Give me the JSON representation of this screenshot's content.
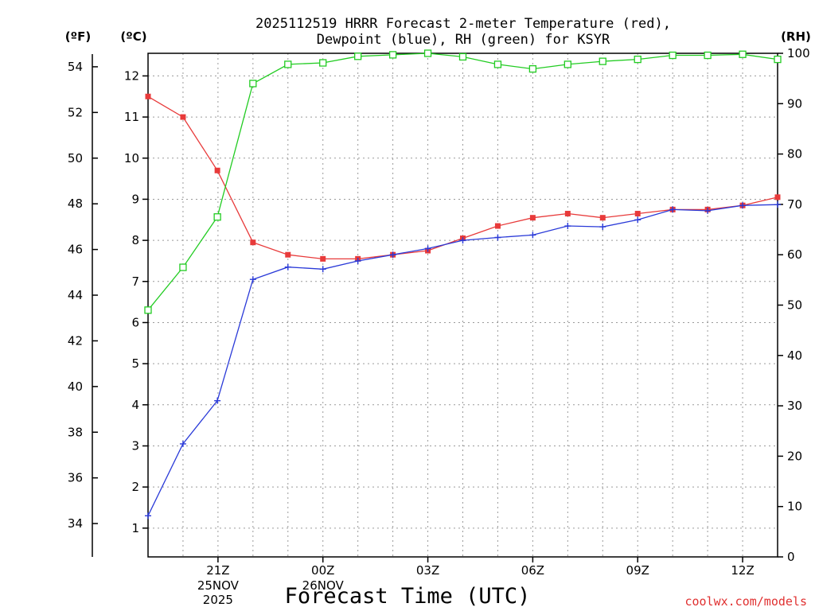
{
  "chart_data": {
    "type": "line",
    "title_line1": "2025112519 HRRR Forecast 2-meter Temperature (red),",
    "title_line2": "Dewpoint (blue), RH (green) for KSYR",
    "xlabel": "Forecast Time (UTC)",
    "unit_left_f": "(ºF)",
    "unit_left_c": "(ºC)",
    "unit_right": "(RH)",
    "credit": "coolwx.com/models",
    "x_hours": [
      -1,
      0,
      1,
      2,
      3,
      4,
      5,
      6,
      7,
      8,
      9,
      10,
      11,
      12,
      13,
      14,
      15,
      16,
      17,
      18,
      19
    ],
    "x_ticks": [
      {
        "hour": 1,
        "label": "21Z",
        "sub1": "25NOV",
        "sub2": "2025"
      },
      {
        "hour": 4,
        "label": "00Z",
        "sub1": "26NOV",
        "sub2": ""
      },
      {
        "hour": 7,
        "label": "03Z",
        "sub1": "",
        "sub2": ""
      },
      {
        "hour": 10,
        "label": "06Z",
        "sub1": "",
        "sub2": ""
      },
      {
        "hour": 13,
        "label": "09Z",
        "sub1": "",
        "sub2": ""
      },
      {
        "hour": 16,
        "label": "12Z",
        "sub1": "",
        "sub2": ""
      }
    ],
    "xlim": [
      -1,
      17
    ],
    "y_celsius": {
      "ylim": [
        0.3,
        12.55
      ],
      "ticks": [
        1,
        2,
        3,
        4,
        5,
        6,
        7,
        8,
        9,
        10,
        11,
        12
      ]
    },
    "y_fahrenheit": {
      "ticks": [
        34,
        36,
        38,
        40,
        42,
        44,
        46,
        48,
        50,
        52,
        54
      ]
    },
    "y_rh": {
      "ylim": [
        0,
        100
      ],
      "ticks": [
        0,
        10,
        20,
        30,
        40,
        50,
        60,
        70,
        80,
        90,
        100
      ]
    },
    "series": [
      {
        "name": "2-meter Temperature",
        "axis": "celsius",
        "color": "#e83a3a",
        "marker": "filled-square",
        "x": [
          -1,
          0,
          0.983,
          2,
          3,
          4,
          5,
          6,
          7,
          8,
          9,
          10,
          11,
          12,
          13,
          14,
          15,
          16,
          17
        ],
        "values": [
          11.5,
          11.0,
          9.7,
          7.95,
          7.65,
          7.55,
          7.55,
          7.65,
          7.75,
          8.05,
          8.35,
          8.55,
          8.65,
          8.55,
          8.65,
          8.75,
          8.75,
          8.85,
          9.05
        ]
      },
      {
        "name": "Dewpoint",
        "axis": "celsius",
        "color": "#2a3ad8",
        "marker": "plus",
        "x": [
          -1,
          0,
          0.983,
          2,
          3,
          4,
          5,
          6,
          7,
          8,
          9,
          10,
          11,
          12,
          13,
          14,
          15,
          16,
          17
        ],
        "values": [
          1.3,
          3.05,
          4.1,
          7.05,
          7.35,
          7.3,
          7.5,
          7.65,
          7.8,
          8.0,
          8.07,
          8.13,
          8.35,
          8.33,
          8.5,
          8.75,
          8.72,
          8.85,
          8.87
        ]
      },
      {
        "name": "Relative Humidity",
        "axis": "rh",
        "color": "#22cc22",
        "marker": "open-square",
        "x": [
          -1,
          0,
          0.983,
          2,
          3,
          4,
          5,
          6,
          7,
          8,
          9,
          10,
          11,
          12,
          13,
          14,
          15,
          16,
          17
        ],
        "values": [
          49,
          57.5,
          67.5,
          94,
          97.8,
          98.1,
          99.4,
          99.7,
          100,
          99.3,
          97.8,
          96.9,
          97.8,
          98.4,
          98.8,
          99.6,
          99.6,
          99.8,
          98.8
        ]
      }
    ]
  }
}
